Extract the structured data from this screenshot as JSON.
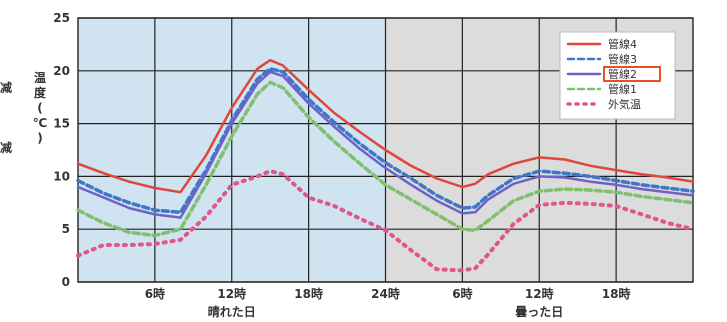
{
  "side_labels": [
    "减",
    "减"
  ],
  "chart_data": {
    "type": "line",
    "ylabel": "温度(℃)",
    "ylim": [
      0,
      25
    ],
    "yticks": [
      0,
      5,
      10,
      15,
      20,
      25
    ],
    "xlim": [
      0,
      48
    ],
    "xticks": [
      {
        "x": 6,
        "label": "6時"
      },
      {
        "x": 12,
        "label": "12時"
      },
      {
        "x": 18,
        "label": "18時"
      },
      {
        "x": 24,
        "label": "24時"
      },
      {
        "x": 30,
        "label": "6時"
      },
      {
        "x": 36,
        "label": "12時"
      },
      {
        "x": 42,
        "label": "18時"
      }
    ],
    "regions": [
      {
        "from": 0,
        "to": 24,
        "label": "晴れた日",
        "color": "#cfe3f1"
      },
      {
        "from": 24,
        "to": 48,
        "label": "曇った日",
        "color": "#dcdcdc"
      }
    ],
    "grid": true,
    "legend_position": "top-right",
    "x": [
      0,
      2,
      4,
      6,
      8,
      10,
      12,
      14,
      15,
      16,
      18,
      20,
      22,
      24,
      26,
      28,
      30,
      31,
      32,
      34,
      36,
      38,
      40,
      42,
      44,
      46,
      48
    ],
    "series": [
      {
        "name": "管線4",
        "color": "#e0463b",
        "style": "solid",
        "values": [
          11.2,
          10.3,
          9.5,
          8.9,
          8.5,
          12.0,
          16.5,
          20.2,
          21.0,
          20.5,
          18.2,
          16.0,
          14.2,
          12.5,
          11.0,
          9.8,
          9.0,
          9.3,
          10.2,
          11.2,
          11.8,
          11.6,
          11.0,
          10.6,
          10.2,
          9.9,
          9.5
        ]
      },
      {
        "name": "管線3",
        "color": "#3e76c8",
        "style": "dashed",
        "values": [
          9.6,
          8.4,
          7.5,
          6.8,
          6.6,
          10.6,
          15.3,
          19.2,
          20.2,
          19.9,
          17.3,
          15.1,
          13.1,
          11.3,
          9.8,
          8.2,
          7.0,
          7.1,
          8.2,
          9.8,
          10.5,
          10.3,
          10.0,
          9.6,
          9.2,
          8.9,
          8.6
        ]
      },
      {
        "name": "管線2",
        "color": "#6f62c7",
        "style": "solid",
        "values": [
          9.0,
          8.0,
          7.0,
          6.4,
          6.1,
          10.3,
          15.0,
          18.8,
          19.9,
          19.5,
          16.9,
          14.7,
          12.6,
          10.8,
          9.2,
          7.7,
          6.5,
          6.6,
          7.8,
          9.3,
          10.0,
          9.9,
          9.5,
          9.2,
          8.8,
          8.5,
          8.2
        ]
      },
      {
        "name": "管線1",
        "color": "#7fbf6e",
        "style": "dashed",
        "values": [
          6.8,
          5.6,
          4.7,
          4.4,
          5.0,
          9.2,
          13.8,
          17.8,
          18.9,
          18.4,
          15.6,
          13.3,
          11.2,
          9.2,
          7.8,
          6.4,
          5.0,
          4.9,
          5.8,
          7.7,
          8.6,
          8.8,
          8.7,
          8.5,
          8.1,
          7.8,
          7.5
        ]
      },
      {
        "name": "外気温",
        "color": "#e0568a",
        "style": "dotted",
        "values": [
          2.5,
          3.5,
          3.5,
          3.6,
          4.0,
          6.2,
          9.2,
          10.0,
          10.5,
          10.2,
          8.0,
          7.2,
          6.0,
          4.9,
          3.0,
          1.2,
          1.1,
          1.3,
          2.6,
          5.5,
          7.3,
          7.5,
          7.4,
          7.2,
          6.4,
          5.6,
          5.0
        ]
      }
    ],
    "highlighted_legend_entry": "管線2",
    "highlight_color": "#e8501f"
  }
}
